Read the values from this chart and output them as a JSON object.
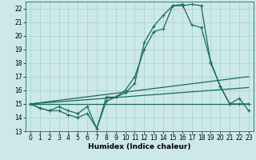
{
  "title": "",
  "xlabel": "Humidex (Indice chaleur)",
  "bg_color": "#cce8e8",
  "line_color": "#1a6b5a",
  "grid_color": "#aacfcf",
  "xlim": [
    -0.5,
    23.5
  ],
  "ylim": [
    13,
    22.5
  ],
  "xticks": [
    0,
    1,
    2,
    3,
    4,
    5,
    6,
    7,
    8,
    9,
    10,
    11,
    12,
    13,
    14,
    15,
    16,
    17,
    18,
    19,
    20,
    21,
    22,
    23
  ],
  "yticks": [
    13,
    14,
    15,
    16,
    17,
    18,
    19,
    20,
    21,
    22
  ],
  "line1_x": [
    0,
    1,
    2,
    3,
    4,
    5,
    6,
    7,
    8,
    9,
    10,
    11,
    12,
    13,
    14,
    15,
    16,
    17,
    18,
    19,
    20,
    21,
    22,
    23
  ],
  "line1_y": [
    15.0,
    14.7,
    14.5,
    14.8,
    14.5,
    14.3,
    14.8,
    13.2,
    15.2,
    15.5,
    16.0,
    17.0,
    19.0,
    20.3,
    20.5,
    22.2,
    22.2,
    22.3,
    22.2,
    18.0,
    16.3,
    15.0,
    15.0,
    15.0
  ],
  "line2_x": [
    0,
    1,
    2,
    3,
    4,
    5,
    6,
    7,
    8,
    9,
    10,
    11,
    12,
    13,
    14,
    15,
    16,
    17,
    18,
    19,
    20,
    21,
    22,
    23
  ],
  "line2_y": [
    15.0,
    14.7,
    14.5,
    14.5,
    14.2,
    14.0,
    14.3,
    13.2,
    15.5,
    15.5,
    15.8,
    16.5,
    19.5,
    20.7,
    21.5,
    22.2,
    22.3,
    20.8,
    20.6,
    18.1,
    16.3,
    15.0,
    15.4,
    14.5
  ],
  "line3_x": [
    0,
    23
  ],
  "line3_y": [
    15.0,
    15.0
  ],
  "line4_x": [
    0,
    23
  ],
  "line4_y": [
    15.0,
    17.0
  ],
  "line5_x": [
    0,
    23
  ],
  "line5_y": [
    15.0,
    16.2
  ],
  "marker_size": 3.5,
  "linewidth": 0.9,
  "label_fontsize": 6.5,
  "tick_fontsize": 5.5
}
